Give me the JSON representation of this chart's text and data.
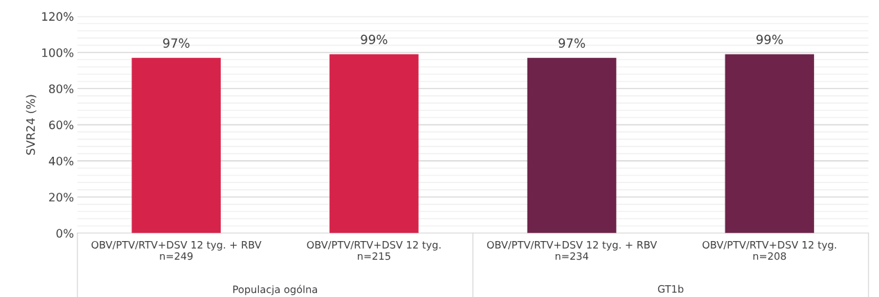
{
  "chart_data": {
    "type": "bar",
    "ylabel": "SVR24 (%)",
    "categories": [
      "OBV/PTV/RTV+DSV 12 tyg. + RBV\nn=249",
      "OBV/PTV/RTV+DSV 12 tyg.\nn=215",
      "OBV/PTV/RTV+DSV 12 tyg. + RBV\nn=234",
      "OBV/PTV/RTV+DSV 12 tyg.\nn=208"
    ],
    "values": [
      97,
      99,
      97,
      99
    ],
    "value_labels": [
      "97%",
      "99%",
      "97%",
      "99%"
    ],
    "colors": [
      "#d6234a",
      "#d6234a",
      "#6e244a",
      "#6e244a"
    ],
    "annotations": [
      "Populacja ogólna",
      "GT1b"
    ],
    "ylim": [
      0,
      120
    ],
    "yticks": [
      {
        "value": 0,
        "label": "0%"
      },
      {
        "value": 20,
        "label": "20%"
      },
      {
        "value": 40,
        "label": "40%"
      },
      {
        "value": 60,
        "label": "60%"
      },
      {
        "value": 80,
        "label": "80%"
      },
      {
        "value": 100,
        "label": "100%"
      },
      {
        "value": 120,
        "label": "120%"
      }
    ],
    "grid": "y",
    "legend": false
  }
}
